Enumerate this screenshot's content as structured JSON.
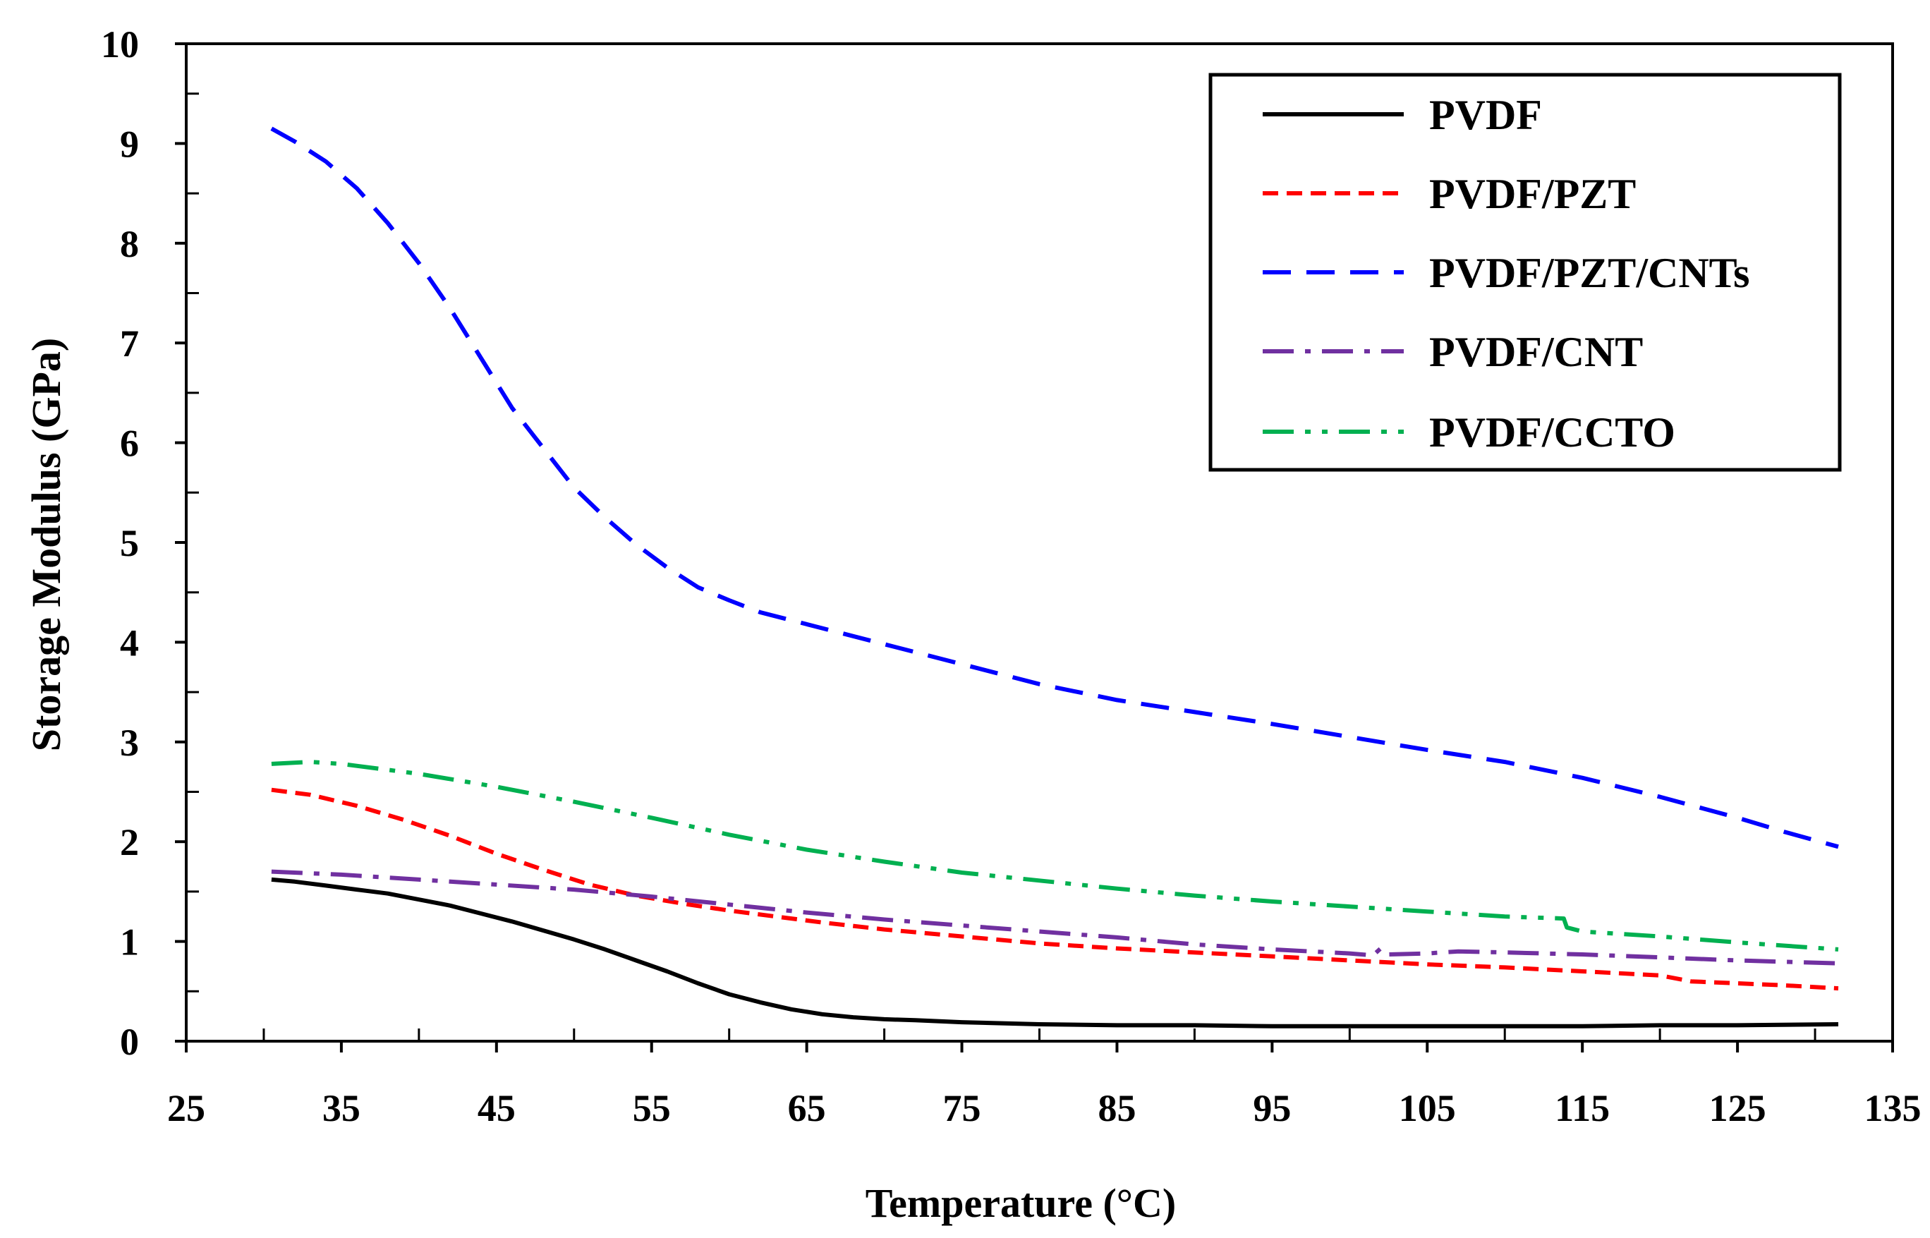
{
  "chart_data": {
    "type": "line",
    "title": "",
    "xlabel": "Temperature (°C)",
    "ylabel": "Storage Modulus (GPa)",
    "xlim": [
      25,
      135
    ],
    "ylim": [
      0,
      10
    ],
    "xticks": [
      25,
      35,
      45,
      55,
      65,
      75,
      85,
      95,
      105,
      115,
      125,
      135
    ],
    "yticks": [
      0,
      1,
      2,
      3,
      4,
      5,
      6,
      7,
      8,
      9,
      10
    ],
    "x_minor_step": 5,
    "y_minor_step": 0.5,
    "grid": false,
    "legend_position": "top-right",
    "series": [
      {
        "name": "PVDF",
        "color": "#000000",
        "dash": "solid",
        "x": [
          30.5,
          32,
          34,
          36,
          38,
          40,
          42,
          44,
          46,
          48,
          50,
          52,
          54,
          56,
          58,
          60,
          62,
          64,
          66,
          68,
          70,
          72,
          75,
          80,
          85,
          90,
          95,
          100,
          105,
          110,
          115,
          120,
          125,
          131.5
        ],
        "y": [
          1.62,
          1.6,
          1.56,
          1.52,
          1.48,
          1.42,
          1.36,
          1.28,
          1.2,
          1.11,
          1.02,
          0.92,
          0.81,
          0.7,
          0.58,
          0.47,
          0.39,
          0.32,
          0.27,
          0.24,
          0.22,
          0.21,
          0.19,
          0.17,
          0.16,
          0.16,
          0.15,
          0.15,
          0.15,
          0.15,
          0.15,
          0.16,
          0.16,
          0.17
        ]
      },
      {
        "name": "PVDF/PZT",
        "color": "#ff0000",
        "dash": "short-dash",
        "x": [
          30.5,
          33,
          36,
          39,
          42,
          45,
          48,
          51,
          54,
          57,
          60,
          63,
          66,
          70,
          75,
          80,
          85,
          90,
          95,
          100,
          105,
          110,
          115,
          120,
          122,
          125,
          128,
          131.5
        ],
        "y": [
          2.52,
          2.47,
          2.36,
          2.22,
          2.06,
          1.88,
          1.72,
          1.57,
          1.46,
          1.38,
          1.31,
          1.25,
          1.19,
          1.12,
          1.05,
          0.98,
          0.93,
          0.89,
          0.85,
          0.81,
          0.77,
          0.74,
          0.7,
          0.66,
          0.6,
          0.58,
          0.56,
          0.53
        ]
      },
      {
        "name": "PVDF/PZT/CNTs",
        "color": "#0000ff",
        "dash": "long-dash",
        "x": [
          30.5,
          32,
          34,
          36,
          38,
          40,
          42,
          44,
          46,
          48,
          50,
          52,
          54,
          56,
          58,
          60,
          62,
          65,
          70,
          75,
          80,
          85,
          90,
          95,
          100,
          105,
          110,
          115,
          120,
          125,
          128,
          131.5
        ],
        "y": [
          9.15,
          9.02,
          8.82,
          8.55,
          8.2,
          7.8,
          7.35,
          6.85,
          6.35,
          5.95,
          5.55,
          5.25,
          4.98,
          4.75,
          4.55,
          4.42,
          4.3,
          4.18,
          3.98,
          3.78,
          3.58,
          3.42,
          3.3,
          3.18,
          3.05,
          2.92,
          2.8,
          2.64,
          2.45,
          2.24,
          2.1,
          1.95
        ]
      },
      {
        "name": "PVDF/CNT",
        "color": "#7030a0",
        "dash": "dash-dot",
        "x": [
          30.5,
          35,
          40,
          45,
          50,
          55,
          60,
          65,
          70,
          75,
          80,
          85,
          90,
          95,
          100,
          101.5,
          102,
          102.5,
          105,
          107,
          110,
          115,
          120,
          125,
          131.5
        ],
        "y": [
          1.7,
          1.67,
          1.62,
          1.57,
          1.52,
          1.45,
          1.37,
          1.29,
          1.22,
          1.16,
          1.1,
          1.04,
          0.97,
          0.92,
          0.88,
          0.86,
          0.93,
          0.87,
          0.88,
          0.9,
          0.89,
          0.87,
          0.84,
          0.81,
          0.78
        ]
      },
      {
        "name": "PVDF/CCTO",
        "color": "#00b050",
        "dash": "dash-dot-dot",
        "x": [
          30.5,
          33,
          35,
          40,
          45,
          50,
          55,
          60,
          65,
          70,
          75,
          80,
          85,
          90,
          95,
          100,
          105,
          110,
          113.8,
          114,
          115,
          120,
          125,
          131.5
        ],
        "y": [
          2.78,
          2.8,
          2.78,
          2.68,
          2.55,
          2.4,
          2.24,
          2.07,
          1.92,
          1.8,
          1.69,
          1.61,
          1.53,
          1.46,
          1.4,
          1.35,
          1.3,
          1.25,
          1.23,
          1.14,
          1.1,
          1.05,
          0.99,
          0.92
        ]
      }
    ]
  }
}
